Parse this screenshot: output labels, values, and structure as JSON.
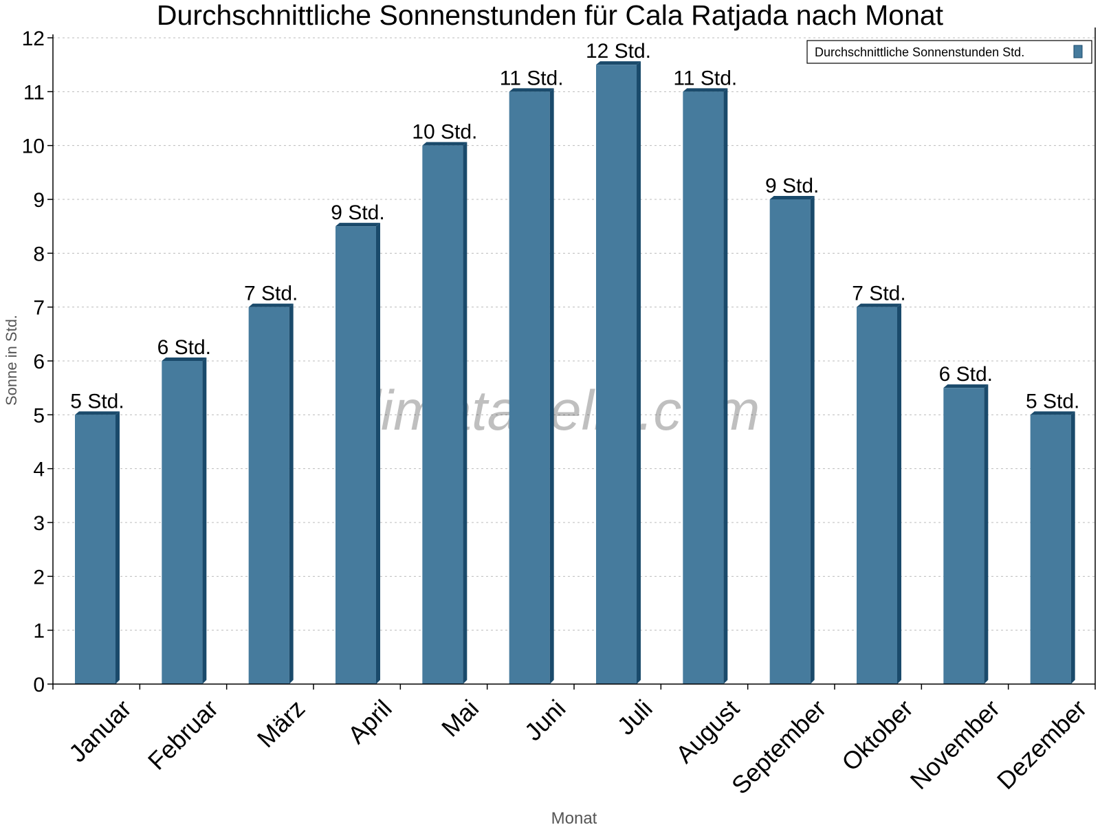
{
  "chart_data": {
    "type": "bar",
    "title": "Durchschnittliche Sonnenstunden für Cala Ratjada nach Monat",
    "xlabel": "Monat",
    "ylabel": "Sonne in Std.",
    "ylim": [
      0,
      12
    ],
    "yticks": [
      "0",
      "1",
      "2",
      "3",
      "4",
      "5",
      "6",
      "7",
      "8",
      "9",
      "10",
      "11",
      "12"
    ],
    "grid": true,
    "legend_placement": "top-right",
    "categories": [
      "Januar",
      "Februar",
      "März",
      "April",
      "Mai",
      "Juni",
      "Juli",
      "August",
      "September",
      "Oktober",
      "November",
      "Dezember"
    ],
    "series": [
      {
        "name": "Durchschnittliche Sonnenstunden Std.",
        "values": [
          5,
          6,
          7,
          8.5,
          10,
          11,
          11.5,
          11,
          9,
          7,
          5.5,
          5
        ],
        "labels": [
          "5 Std.",
          "6 Std.",
          "7 Std.",
          "9 Std.",
          "10 Std.",
          "11 Std.",
          "12 Std.",
          "11 Std.",
          "9 Std.",
          "7 Std.",
          "6 Std.",
          "5 Std."
        ],
        "color": "#467b9d",
        "shade_color": "#1a4a6b"
      }
    ],
    "watermark": "klimatabelle.com"
  }
}
